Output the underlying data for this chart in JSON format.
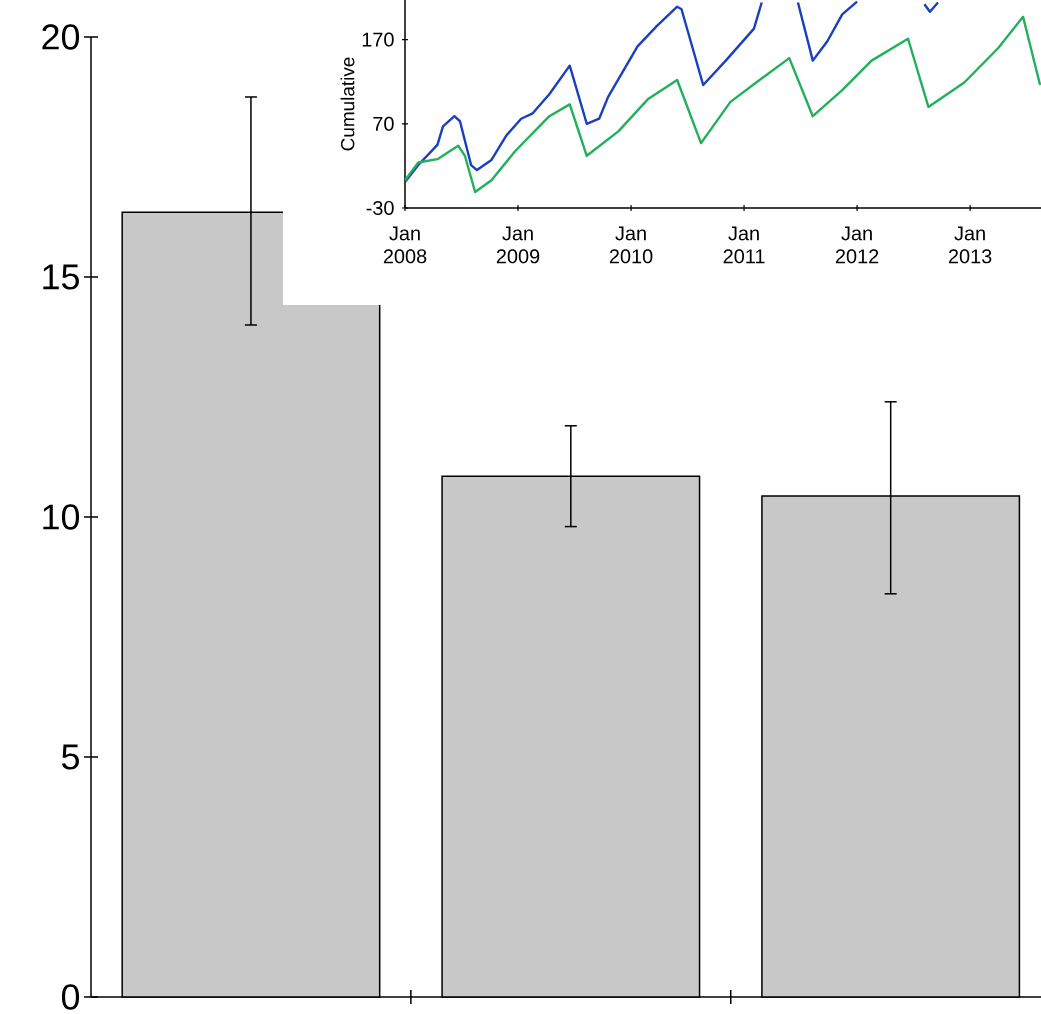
{
  "chart_data": [
    {
      "type": "bar",
      "categories": [
        null,
        null,
        null
      ],
      "values": [
        16.35,
        10.85,
        10.44
      ],
      "color": "#c8c8c8",
      "errors": [
        [
          14.0,
          18.75
        ],
        [
          9.8,
          11.9
        ],
        [
          8.4,
          12.4
        ]
      ],
      "ylim": [
        0,
        20
      ],
      "yticks": [
        0,
        5,
        10,
        15,
        20
      ]
    },
    {
      "type": "line",
      "ylabel": "Cumulative",
      "xlim": [
        "2008-01-01",
        "2013-08-18"
      ],
      "ylim": [
        -30,
        217
      ],
      "xticks": [
        {
          "value": "2008-01",
          "label": "Jan 2008"
        },
        {
          "value": "2009-01",
          "label": "Jan 2009"
        },
        {
          "value": "2010-01",
          "label": "Jan 2010"
        },
        {
          "value": "2011-01",
          "label": "Jan 2011"
        },
        {
          "value": "2012-01",
          "label": "Jan 2012"
        },
        {
          "value": "2013-01",
          "label": "Jan 2013"
        }
      ],
      "yticks": [
        -30,
        70,
        170
      ],
      "series": [
        {
          "color": "#1a3fbf",
          "x": [
            "2008-01-01",
            "2008-02-13",
            "2008-04-15",
            "2008-05-03",
            "2008-06-09",
            "2008-06-27",
            "2008-08-02",
            "2008-08-21",
            "2008-10-07",
            "2008-11-24",
            "2009-01-11",
            "2009-02-16",
            "2009-04-12",
            "2009-06-17",
            "2009-08-11",
            "2009-09-20",
            "2009-10-19",
            "2010-01-22",
            "2010-03-25",
            "2010-05-30",
            "2010-06-13",
            "2010-08-22",
            "2010-11-03",
            "2011-02-02",
            "2011-02-27",
            "2011-03-07",
            "2011-06-24",
            "2011-08-11",
            "2011-09-27",
            "2011-11-14",
            "2012-01-01",
            "2012-04-19",
            "2012-08-06",
            "2012-08-24",
            "2012-09-19"
          ],
          "values": [
            1,
            21,
            45,
            67,
            79,
            73,
            21,
            15,
            27,
            56,
            76,
            82,
            105,
            139,
            70,
            76,
            102,
            162,
            186,
            209,
            206,
            116,
            145,
            183,
            214,
            null,
            214,
            145,
            168,
            200,
            215,
            null,
            212,
            203,
            214
          ]
        },
        {
          "color": "#22b05a",
          "x": [
            "2008-01-01",
            "2008-02-13",
            "2008-04-15",
            "2008-06-21",
            "2008-07-13",
            "2008-08-15",
            "2008-10-07",
            "2008-12-24",
            "2009-04-12",
            "2009-06-17",
            "2009-08-11",
            "2009-11-21",
            "2010-02-24",
            "2010-05-30",
            "2010-08-15",
            "2010-11-18",
            "2011-02-20",
            "2011-05-27",
            "2011-08-11",
            "2011-11-14",
            "2012-02-17",
            "2012-06-14",
            "2012-08-19",
            "2012-12-13",
            "2013-04-02",
            "2013-06-21",
            "2013-08-15"
          ],
          "values": [
            3,
            24,
            28,
            44,
            32,
            -11,
            3,
            38,
            79,
            93,
            32,
            61,
            99,
            122,
            47,
            96,
            122,
            148,
            79,
            110,
            145,
            171,
            90,
            119,
            160,
            197,
            116
          ]
        }
      ]
    }
  ]
}
